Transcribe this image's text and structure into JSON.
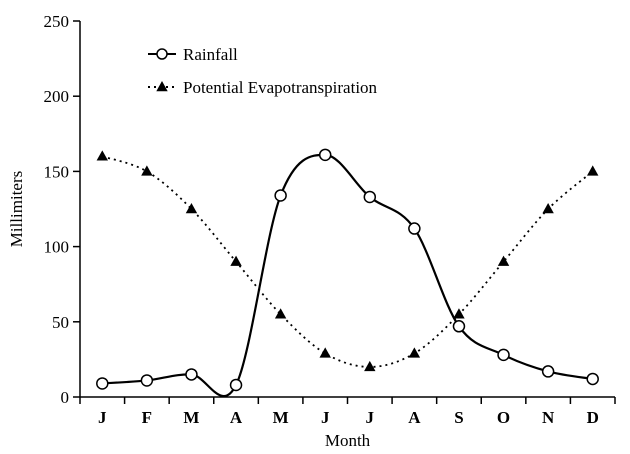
{
  "chart_data": {
    "type": "line",
    "xlabel": "Month",
    "ylabel": "Millimiters",
    "categories": [
      "J",
      "F",
      "M",
      "A",
      "M",
      "J",
      "J",
      "A",
      "S",
      "O",
      "N",
      "D"
    ],
    "ylim": [
      0,
      250
    ],
    "yticks": [
      0,
      50,
      100,
      150,
      200,
      250
    ],
    "grid": false,
    "legend_position": "top-left",
    "series": [
      {
        "name": "Rainfall",
        "style": "solid",
        "marker": "circle",
        "color": "#000000",
        "values": [
          9,
          11,
          15,
          8,
          134,
          161,
          133,
          112,
          47,
          28,
          17,
          12
        ]
      },
      {
        "name": "Potential Evapotranspiration",
        "style": "dotted",
        "marker": "triangle",
        "color": "#000000",
        "values": [
          160,
          150,
          125,
          90,
          55,
          29,
          20,
          29,
          55,
          90,
          125,
          150
        ]
      }
    ]
  }
}
